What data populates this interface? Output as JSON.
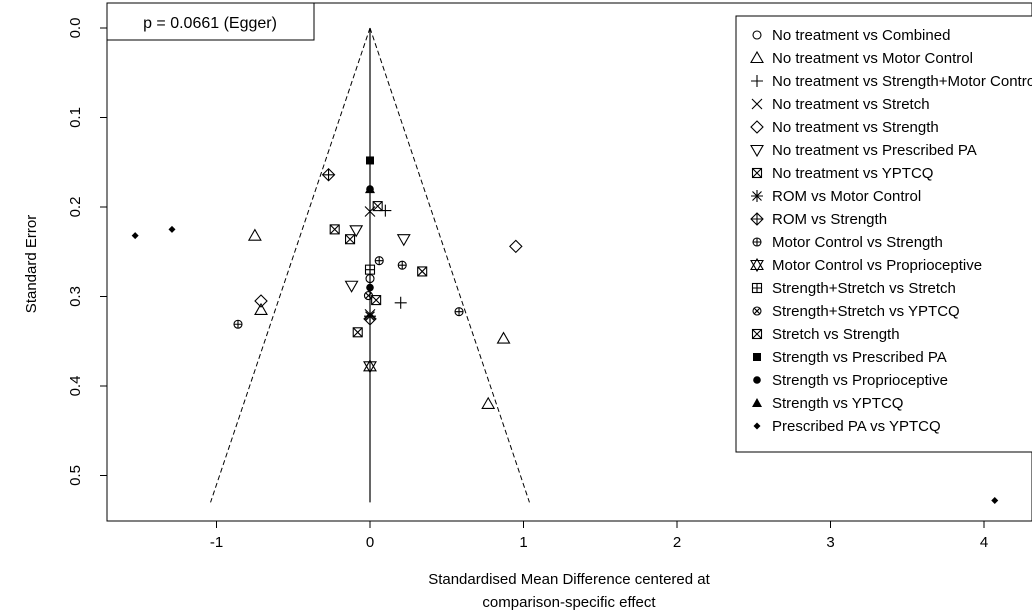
{
  "chart_data": {
    "type": "scatter",
    "subtype": "comparison-adjusted funnel plot",
    "xlabel_lines": [
      "Standardised Mean Difference centered at",
      "comparison-specific effect"
    ],
    "ylabel": "Standard Error",
    "xlim": [
      -1.7,
      4.2
    ],
    "ylim": [
      0.545,
      -0.01
    ],
    "y_reversed": true,
    "x_ticks": [
      -1,
      0,
      1,
      2,
      3,
      4
    ],
    "x_tick_labels": [
      "-1",
      "0",
      "1",
      "2",
      "3",
      "4"
    ],
    "y_ticks": [
      0.0,
      0.1,
      0.2,
      0.3,
      0.4,
      0.5
    ],
    "y_tick_labels": [
      "0.0",
      "0.1",
      "0.2",
      "0.3",
      "0.4",
      "0.5"
    ],
    "annotation": "p = 0.0661 (Egger)",
    "annotation_position": "top-left",
    "legend_position": "top-right",
    "funnel": {
      "apex": [
        0,
        0.0
      ],
      "base_se": 0.53,
      "z": 1.96,
      "line_style": "dashed"
    },
    "center_line": {
      "x": 0,
      "from_se": 0.0,
      "to_se": 0.53
    },
    "series": [
      {
        "name": "No treatment vs Combined",
        "symbol": "circle-open",
        "points": [
          [
            0.0,
            0.28
          ]
        ]
      },
      {
        "name": "No treatment vs Motor Control",
        "symbol": "triangle-up-open",
        "points": [
          [
            -0.75,
            0.232
          ],
          [
            -0.71,
            0.315
          ],
          [
            0.87,
            0.347
          ],
          [
            0.77,
            0.42
          ]
        ]
      },
      {
        "name": "No treatment vs Strength+Motor Control",
        "symbol": "plus",
        "points": [
          [
            0.1,
            0.204
          ],
          [
            0.2,
            0.307
          ]
        ]
      },
      {
        "name": "No treatment vs Stretch",
        "symbol": "cross",
        "points": [
          [
            0.0,
            0.205
          ],
          [
            0.0,
            0.32
          ]
        ]
      },
      {
        "name": "No treatment vs Strength",
        "symbol": "diamond-open",
        "points": [
          [
            0.95,
            0.244
          ],
          [
            -0.71,
            0.305
          ],
          [
            0.0,
            0.325
          ]
        ]
      },
      {
        "name": "No treatment vs Prescribed PA",
        "symbol": "triangle-down-open",
        "points": [
          [
            0.22,
            0.236
          ],
          [
            -0.12,
            0.288
          ],
          [
            -0.09,
            0.226
          ]
        ]
      },
      {
        "name": "No treatment vs YPTCQ",
        "symbol": "square-x",
        "points": [
          [
            -0.23,
            0.225
          ],
          [
            -0.13,
            0.236
          ],
          [
            0.34,
            0.272
          ],
          [
            0.04,
            0.304
          ],
          [
            0.05,
            0.199
          ]
        ]
      },
      {
        "name": "ROM vs Motor Control",
        "symbol": "asterisk",
        "points": [
          [
            0.0,
            0.322
          ]
        ]
      },
      {
        "name": "ROM vs Strength",
        "symbol": "diamond-plus",
        "points": [
          [
            -0.27,
            0.164
          ]
        ]
      },
      {
        "name": "Motor Control vs Strength",
        "symbol": "circle-plus",
        "points": [
          [
            -0.86,
            0.331
          ],
          [
            0.58,
            0.317
          ],
          [
            0.21,
            0.265
          ],
          [
            0.06,
            0.26
          ]
        ]
      },
      {
        "name": "Motor Control vs Proprioceptive",
        "symbol": "hourglass",
        "points": [
          [
            0.0,
            0.378
          ]
        ]
      },
      {
        "name": "Strength+Stretch vs Stretch",
        "symbol": "square-plus",
        "points": [
          [
            0.0,
            0.27
          ]
        ]
      },
      {
        "name": "Strength+Stretch vs YPTCQ",
        "symbol": "circle-x",
        "points": [
          [
            -0.01,
            0.299
          ]
        ]
      },
      {
        "name": "Stretch vs Strength",
        "symbol": "square-x",
        "points": [
          [
            -0.08,
            0.34
          ]
        ]
      },
      {
        "name": "Strength vs Prescribed PA",
        "symbol": "square-filled",
        "points": [
          [
            0.0,
            0.148
          ]
        ]
      },
      {
        "name": "Strength vs Proprioceptive",
        "symbol": "circle-filled",
        "points": [
          [
            0.0,
            0.18
          ],
          [
            0.0,
            0.29
          ]
        ]
      },
      {
        "name": "Strength vs YPTCQ",
        "symbol": "triangle-filled",
        "points": [
          [
            0.0,
            0.18
          ]
        ]
      },
      {
        "name": "Prescribed PA vs YPTCQ",
        "symbol": "diamond-filled",
        "points": [
          [
            -1.53,
            0.232
          ],
          [
            -1.29,
            0.225
          ],
          [
            4.07,
            0.528
          ]
        ]
      }
    ]
  }
}
